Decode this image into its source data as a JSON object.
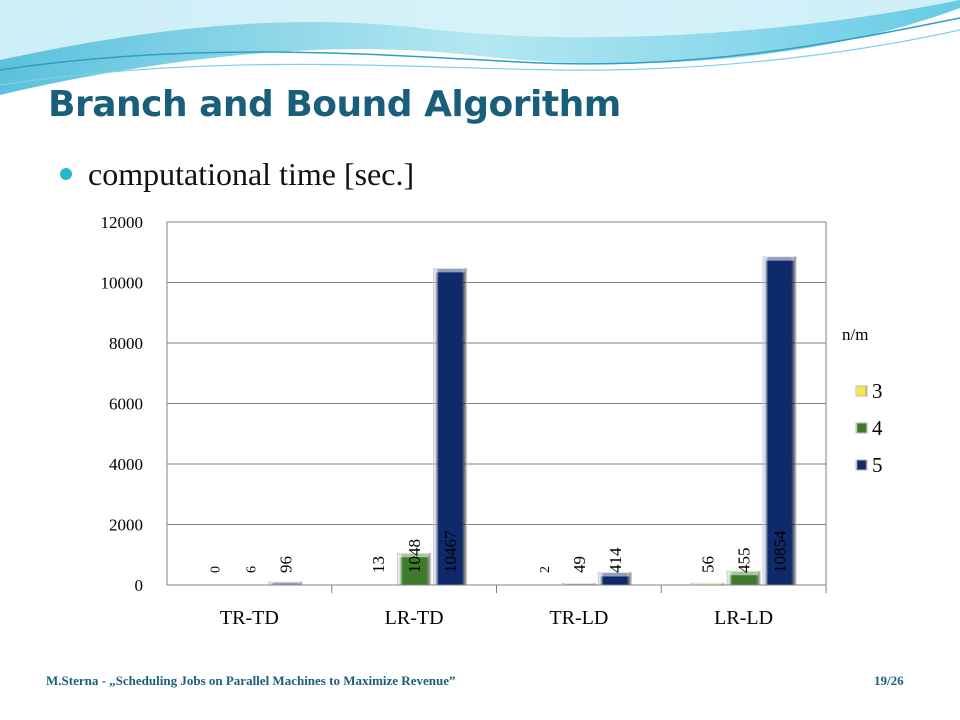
{
  "slide": {
    "title": "Branch and Bound Algorithm",
    "bullet": "computational time [sec.]",
    "footer": "M.Sterna - „Scheduling Jobs on Parallel Machines to Maximize Revenue”",
    "page": "19/26"
  },
  "colors": {
    "title": "#1a5f7a",
    "bullet": "#2ab7c9",
    "series": [
      "#f5e642",
      "#3f7a2a",
      "#0f2a6b"
    ]
  },
  "chart_data": {
    "type": "bar",
    "title": "",
    "xlabel": "",
    "ylabel": "",
    "categories": [
      "TR-TD",
      "LR-TD",
      "TR-LD",
      "LR-LD"
    ],
    "legend_title": "n/m",
    "legend_position": "right",
    "ylim": [
      0,
      12000
    ],
    "yticks": [
      0,
      2000,
      4000,
      6000,
      8000,
      10000,
      12000
    ],
    "grid": true,
    "series": [
      {
        "name": "3",
        "values": [
          0,
          13,
          2,
          56
        ]
      },
      {
        "name": "4",
        "values": [
          6,
          1048,
          49,
          455
        ]
      },
      {
        "name": "5",
        "values": [
          96,
          10467,
          414,
          10854
        ]
      }
    ]
  }
}
